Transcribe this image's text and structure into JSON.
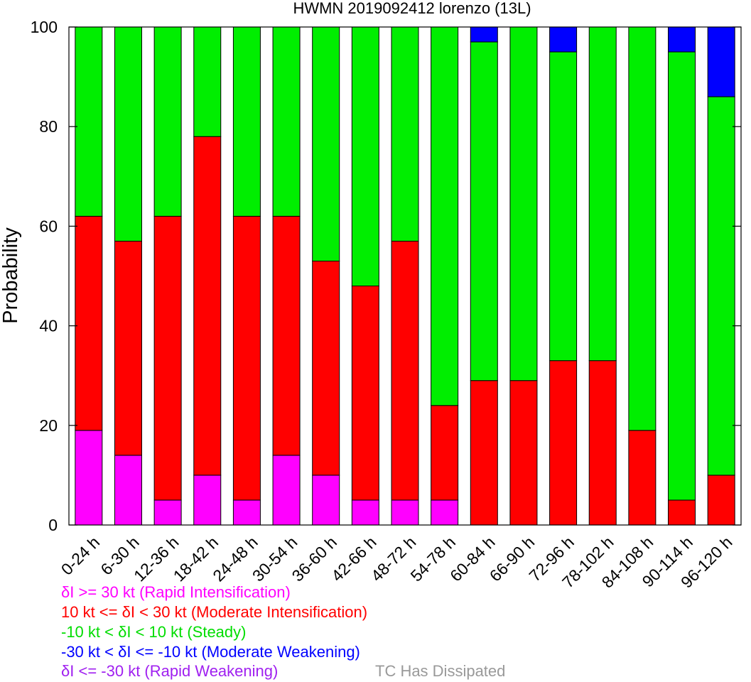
{
  "chart_data": {
    "type": "bar",
    "stacked": true,
    "title": "HWMN 2019092412 lorenzo (13L)",
    "ylabel": "Probability",
    "xlabel": "",
    "ylim": [
      0,
      100
    ],
    "yticks": [
      0,
      20,
      40,
      60,
      80,
      100
    ],
    "grid": false,
    "categories": [
      "0-24 h",
      "6-30 h",
      "12-36 h",
      "18-42 h",
      "24-48 h",
      "30-54 h",
      "36-60 h",
      "42-66 h",
      "48-72 h",
      "54-78 h",
      "60-84 h",
      "66-90 h",
      "72-96 h",
      "78-102 h",
      "84-108 h",
      "90-114 h",
      "96-120 h"
    ],
    "series": [
      {
        "key": "rapid_intensification",
        "color": "#ff00ff",
        "values": [
          19,
          14,
          5,
          10,
          5,
          14,
          10,
          5,
          5,
          5,
          0,
          0,
          0,
          0,
          0,
          0,
          0
        ]
      },
      {
        "key": "moderate_intensification",
        "color": "#ff0000",
        "values": [
          43,
          43,
          57,
          68,
          57,
          48,
          43,
          43,
          52,
          19,
          29,
          29,
          33,
          33,
          19,
          5,
          10
        ]
      },
      {
        "key": "steady",
        "color": "#00ee00",
        "values": [
          38,
          43,
          38,
          22,
          38,
          38,
          47,
          52,
          43,
          76,
          68,
          71,
          62,
          67,
          81,
          90,
          76
        ]
      },
      {
        "key": "moderate_weakening",
        "color": "#0000ff",
        "values": [
          0,
          0,
          0,
          0,
          0,
          0,
          0,
          0,
          0,
          0,
          3,
          0,
          5,
          0,
          0,
          5,
          14
        ]
      },
      {
        "key": "rapid_weakening",
        "color": "#a020f0",
        "values": [
          0,
          0,
          0,
          0,
          0,
          0,
          0,
          0,
          0,
          0,
          0,
          0,
          0,
          0,
          0,
          0,
          0
        ]
      }
    ]
  },
  "legend": [
    {
      "text": "δI >= 30 kt (Rapid Intensification)",
      "color": "#ff00ff"
    },
    {
      "text": "10 kt <= δI < 30 kt (Moderate Intensification)",
      "color": "#ff0000"
    },
    {
      "text": "-10 kt < δI < 10 kt (Steady)",
      "color": "#00dd00"
    },
    {
      "text": "-30 kt < δI <= -10 kt (Moderate Weakening)",
      "color": "#0000ff"
    },
    {
      "text": "δI <= -30 kt (Rapid Weakening)",
      "color": "#a020f0"
    }
  ],
  "extra_legend": {
    "text": "TC Has Dissipated",
    "color": "#999999"
  }
}
